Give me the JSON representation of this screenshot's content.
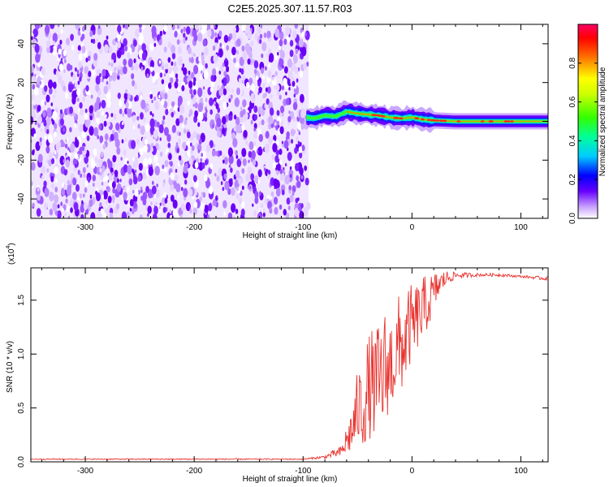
{
  "title": "C2E5.2025.307.11.57.R03",
  "chart_data": [
    {
      "type": "heatmap",
      "xlabel": "Height of straight line (km)",
      "ylabel": "Frequency (Hz)",
      "xlim": [
        -350,
        125
      ],
      "ylim": [
        -50,
        50
      ],
      "xticks": [
        -300,
        -200,
        -100,
        0,
        100
      ],
      "yticks": [
        -40,
        -20,
        0,
        20,
        40
      ],
      "noise_region_x": [
        -350,
        -95
      ],
      "signal_line": {
        "x": [
          -97,
          -90,
          -80,
          -70,
          -60,
          -50,
          -40,
          -30,
          -20,
          -10,
          0,
          10,
          20,
          40,
          60,
          80,
          100,
          125
        ],
        "freq": [
          2,
          1.5,
          3,
          2.5,
          5,
          4,
          3.5,
          3,
          2,
          1.5,
          2,
          1,
          0.5,
          0,
          0,
          0,
          0,
          0
        ]
      },
      "colorbar": {
        "label": "Normalized spectral amplitude",
        "range": [
          0.0,
          1.0
        ],
        "ticks": [
          0.0,
          0.2,
          0.4,
          0.6,
          0.8
        ],
        "tick_labels": [
          "0.0",
          "0.2",
          "0.4",
          "0.6",
          "0.8"
        ]
      }
    },
    {
      "type": "line",
      "xlabel": "Height of straight line (km)",
      "ylabel": "SNR (10 * v/v)",
      "scale_label": "(x10",
      "scale_exp": "4",
      "scale_close": ")",
      "xlim": [
        -350,
        125
      ],
      "ylim": [
        0,
        1.8
      ],
      "xticks": [
        -300,
        -200,
        -100,
        0,
        100
      ],
      "yticks": [
        0.0,
        0.5,
        1.0,
        1.5
      ],
      "ytick_labels": [
        "0.0",
        "0.5",
        "1.0",
        "1.5"
      ],
      "color": "#e8322e",
      "series_envelope": {
        "x": [
          -350,
          -100,
          -80,
          -65,
          -55,
          -50,
          -45,
          -40,
          -35,
          -30,
          -25,
          -20,
          -15,
          -10,
          -5,
          0,
          5,
          10,
          15,
          20,
          25,
          30,
          40,
          60,
          80,
          100,
          125
        ],
        "lo": [
          0.02,
          0.02,
          0.03,
          0.05,
          0.1,
          0.2,
          0.15,
          0.2,
          0.25,
          0.3,
          0.35,
          0.5,
          0.6,
          0.65,
          0.8,
          0.95,
          1.05,
          1.15,
          1.25,
          1.4,
          1.55,
          1.62,
          1.7,
          1.72,
          1.72,
          1.71,
          1.68
        ],
        "hi": [
          0.03,
          0.03,
          0.06,
          0.15,
          0.55,
          0.85,
          1.0,
          1.2,
          1.25,
          1.3,
          1.45,
          1.4,
          1.5,
          1.6,
          1.62,
          1.65,
          1.68,
          1.72,
          1.75,
          1.77,
          1.78,
          1.78,
          1.76,
          1.75,
          1.75,
          1.73,
          1.72
        ]
      }
    }
  ]
}
